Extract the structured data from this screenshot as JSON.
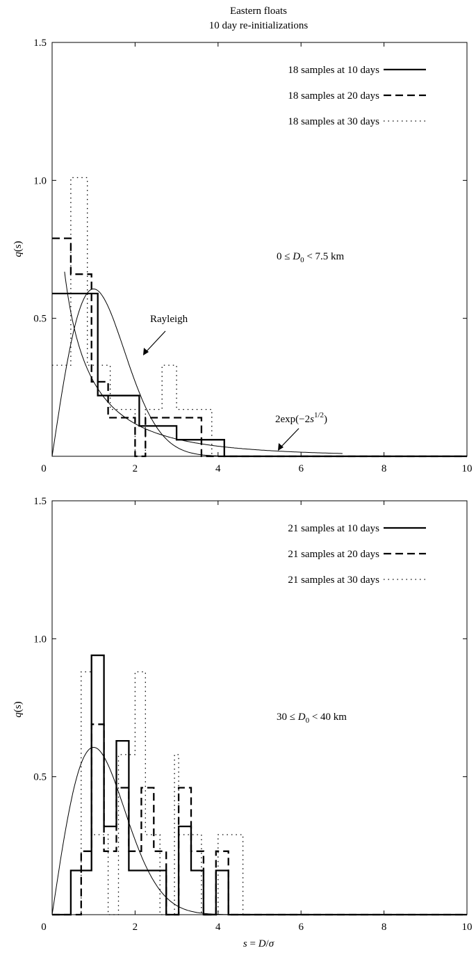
{
  "figure": {
    "title_line1": "Eastern floats",
    "title_line2": "10 day re-initializations"
  },
  "chart_data": [
    {
      "type": "histogram",
      "ylabel": "q(s)",
      "xlabel": "",
      "xlim": [
        0,
        10
      ],
      "ylim": [
        0,
        1.5
      ],
      "xticks": [
        "0",
        "2",
        "4",
        "6",
        "8",
        "10"
      ],
      "yticks": [
        "0.5",
        "1.0",
        "1.5"
      ],
      "annotation_range": {
        "pre": "0 ≤ ",
        "var": "D",
        "sub": "0",
        "post": " < 7.5 km"
      },
      "annotation_rayleigh": "Rayleigh",
      "annotation_exp": {
        "pre": "2exp(−2",
        "var": "s",
        "sup": "1/2",
        "post": ")"
      },
      "legend_position": "top-right",
      "series": [
        {
          "name": "18 samples at 10 days",
          "style": "solid",
          "x": [
            0,
            1.1,
            2.1,
            3.0,
            4.15,
            10
          ],
          "values": [
            0.59,
            0.22,
            0.11,
            0.06,
            0.0
          ]
        },
        {
          "name": "18 samples at 20 days",
          "style": "dashed",
          "x": [
            0,
            0.45,
            0.7,
            0.95,
            1.15,
            1.35,
            1.75,
            2.0,
            2.25,
            3.0,
            3.6,
            3.9,
            10
          ],
          "values": [
            0.79,
            0.66,
            0.66,
            0.27,
            0.27,
            0.14,
            0.14,
            0.0,
            0.14,
            0.14,
            0.0,
            0.0
          ]
        },
        {
          "name": "18 samples at 30 days",
          "style": "dotted",
          "x": [
            0,
            0.45,
            0.6,
            0.85,
            1.4,
            2.0,
            2.25,
            2.65,
            3.0,
            3.3,
            3.85,
            4.05,
            10
          ],
          "values": [
            0.33,
            1.01,
            1.01,
            0.33,
            0.17,
            0.0,
            0.17,
            0.33,
            0.17,
            0.17,
            0.0,
            0.0
          ]
        }
      ],
      "curves": [
        {
          "name": "Rayleigh",
          "formula": "s*exp(-s^2/2)",
          "range": [
            0,
            7
          ]
        },
        {
          "name": "2exp(-2s^1/2)",
          "formula": "2*exp(-2*sqrt(s))",
          "range": [
            0.3,
            7
          ]
        }
      ]
    },
    {
      "type": "histogram",
      "ylabel": "q(s)",
      "xlabel": "s = D/σ",
      "xlim": [
        0,
        10
      ],
      "ylim": [
        0,
        1.5
      ],
      "xticks": [
        "0",
        "2",
        "4",
        "6",
        "8",
        "10"
      ],
      "yticks": [
        "0.5",
        "1.0",
        "1.5"
      ],
      "annotation_range": {
        "pre": "30 ≤ ",
        "var": "D",
        "sub": "0",
        "post": " < 40 km"
      },
      "legend_position": "top-right",
      "series": [
        {
          "name": "21 samples at 10 days",
          "style": "solid",
          "x": [
            0,
            0.45,
            0.95,
            1.25,
            1.55,
            1.85,
            2.75,
            3.05,
            3.35,
            3.65,
            3.95,
            4.25,
            10
          ],
          "values": [
            0.0,
            0.16,
            0.94,
            0.32,
            0.63,
            0.16,
            0.0,
            0.32,
            0.16,
            0.0,
            0.16,
            0.0
          ]
        },
        {
          "name": "21 samples at 20 days",
          "style": "dashed",
          "x": [
            0,
            0.7,
            0.95,
            1.25,
            1.55,
            1.85,
            2.15,
            2.45,
            2.75,
            3.05,
            3.35,
            3.65,
            3.95,
            4.25,
            10
          ],
          "values": [
            0.0,
            0.23,
            0.69,
            0.23,
            0.46,
            0.23,
            0.46,
            0.23,
            0.0,
            0.46,
            0.23,
            0.0,
            0.23,
            0.0
          ]
        },
        {
          "name": "21 samples at 30 days",
          "style": "dotted",
          "x": [
            0,
            0.7,
            0.95,
            1.35,
            1.6,
            2.0,
            2.25,
            2.6,
            2.95,
            3.05,
            3.6,
            4.0,
            4.6,
            10
          ],
          "values": [
            0.0,
            0.88,
            0.29,
            0.0,
            0.58,
            0.88,
            0.29,
            0.0,
            0.58,
            0.29,
            0.0,
            0.29,
            0.0
          ]
        }
      ],
      "curves": [
        {
          "name": "Rayleigh",
          "formula": "s*exp(-s^2/2)",
          "range": [
            0,
            10
          ]
        }
      ]
    }
  ]
}
